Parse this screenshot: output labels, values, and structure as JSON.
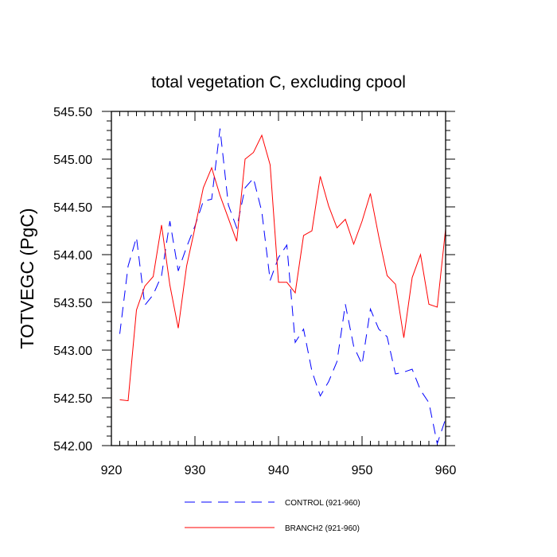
{
  "chart_data": {
    "type": "line",
    "title": "total vegetation C, excluding cpool",
    "xlabel": "",
    "ylabel": "TOTVEGC  (PgC)",
    "xlim": [
      920,
      960
    ],
    "ylim": [
      542.0,
      545.5
    ],
    "xticks": [
      920,
      930,
      940,
      950,
      960
    ],
    "yticks": [
      542.0,
      542.5,
      543.0,
      543.5,
      544.0,
      544.5,
      545.0,
      545.5
    ],
    "x_tick_labels": [
      "920",
      "930",
      "940",
      "950",
      "960"
    ],
    "y_tick_labels": [
      "542.00",
      "542.50",
      "543.00",
      "543.50",
      "544.00",
      "544.50",
      "545.00",
      "545.50"
    ],
    "grid": false,
    "legend_position": "bottom",
    "x": [
      921,
      922,
      923,
      924,
      925,
      926,
      927,
      928,
      929,
      930,
      931,
      932,
      933,
      934,
      935,
      936,
      937,
      938,
      939,
      940,
      941,
      942,
      943,
      944,
      945,
      946,
      947,
      948,
      949,
      950,
      951,
      952,
      953,
      954,
      955,
      956,
      957,
      958,
      959,
      960
    ],
    "series": [
      {
        "name": "CONTROL (921-960)",
        "label": "CONTROL (921-960)",
        "color": "#0000ff",
        "dash": "dashed",
        "values": [
          543.17,
          543.88,
          544.18,
          543.47,
          543.58,
          543.78,
          544.35,
          543.83,
          544.08,
          544.3,
          544.56,
          544.58,
          545.32,
          544.52,
          544.28,
          544.7,
          544.8,
          544.45,
          543.73,
          543.97,
          544.1,
          543.08,
          543.22,
          542.78,
          542.52,
          542.67,
          542.88,
          543.48,
          543.04,
          542.85,
          543.43,
          543.22,
          543.14,
          542.75,
          542.77,
          542.8,
          542.58,
          542.45,
          542.02,
          542.28
        ]
      },
      {
        "name": "BRANCH2 (921-960)",
        "label": "BRANCH2 (921-960)",
        "color": "#ff0000",
        "dash": "solid",
        "values": [
          542.48,
          542.47,
          543.42,
          543.67,
          543.77,
          544.31,
          543.68,
          543.23,
          543.88,
          544.28,
          544.7,
          544.91,
          544.62,
          544.38,
          544.14,
          545.0,
          545.07,
          545.25,
          544.94,
          543.71,
          543.71,
          543.6,
          544.2,
          544.25,
          544.82,
          544.51,
          544.28,
          544.37,
          544.11,
          544.35,
          544.64,
          544.19,
          543.78,
          543.69,
          543.13,
          543.76,
          544.0,
          543.48,
          543.45,
          544.27
        ]
      }
    ]
  }
}
